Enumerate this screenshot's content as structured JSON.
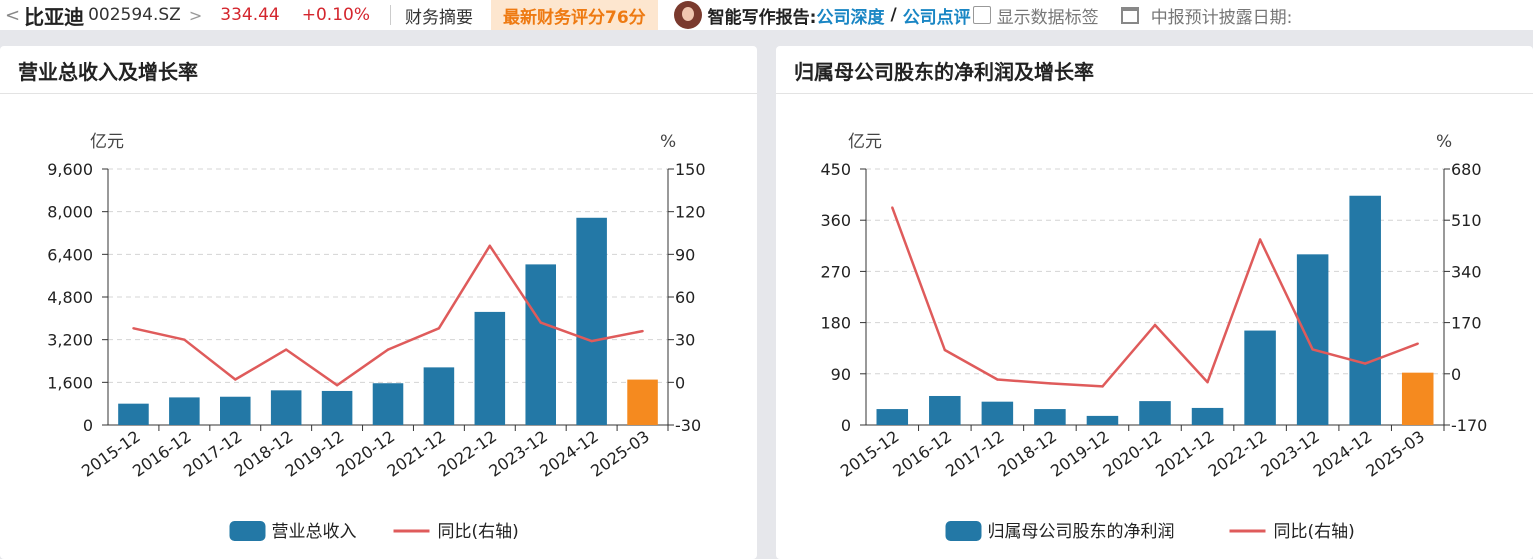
{
  "header": {
    "back": "<",
    "stock_name": "比亚迪",
    "stock_code": "002594.SZ",
    "chevron": ">",
    "price": "334.44",
    "change": "+0.10%",
    "tab_finance": "财务摘要",
    "score_badge": "最新财务评分76分",
    "ai_label": "智能写作报告:",
    "ai_link_depth": "公司深度",
    "ai_slash": "/",
    "ai_link_review": "公司点评",
    "show_labels": "显示数据标签",
    "disclosure": "中报预计披露日期:"
  },
  "colors": {
    "bar": "#2378a6",
    "bar_forecast": "#f58a1f",
    "line": "#df5b5b",
    "grid": "#d4d4d4"
  },
  "chart_data": [
    {
      "type": "bar",
      "title": "营业总收入及增长率",
      "left_unit": "亿元",
      "right_unit": "%",
      "categories": [
        "2015-12",
        "2016-12",
        "2017-12",
        "2018-12",
        "2019-12",
        "2020-12",
        "2021-12",
        "2022-12",
        "2023-12",
        "2024-12",
        "2025-03"
      ],
      "series": [
        {
          "name": "营业总收入",
          "axis": "left",
          "values": [
            800,
            1035,
            1060,
            1300,
            1277,
            1566,
            2161,
            4241,
            6023,
            7771,
            1703
          ]
        },
        {
          "name": "同比(右轴)",
          "type": "line",
          "axis": "right",
          "values": [
            38,
            30,
            2,
            23,
            -2,
            23,
            38,
            96,
            42,
            29,
            36
          ]
        }
      ],
      "ylim_left": [
        0,
        9600
      ],
      "yticks_left": [
        "0",
        "1,600",
        "3,200",
        "4,800",
        "6,400",
        "8,000",
        "9,600"
      ],
      "ylim_right": [
        -30,
        150
      ],
      "yticks_right": [
        "-30",
        "0",
        "30",
        "60",
        "90",
        "120",
        "150"
      ],
      "highlight_last": true,
      "grid": true,
      "legend": "bottom-center"
    },
    {
      "type": "bar",
      "title": "归属母公司股东的净利润及增长率",
      "left_unit": "亿元",
      "right_unit": "%",
      "categories": [
        "2015-12",
        "2016-12",
        "2017-12",
        "2018-12",
        "2019-12",
        "2020-12",
        "2021-12",
        "2022-12",
        "2023-12",
        "2024-12",
        "2025-03"
      ],
      "series": [
        {
          "name": "归属母公司股东的净利润",
          "axis": "left",
          "values": [
            28,
            51,
            41,
            28,
            16,
            42,
            30,
            166,
            300,
            403,
            92
          ]
        },
        {
          "name": "同比(右轴)",
          "type": "line",
          "axis": "right",
          "values": [
            552,
            79,
            -19,
            -32,
            -42,
            162,
            -28,
            446,
            81,
            34,
            100
          ]
        }
      ],
      "ylim_left": [
        0,
        450
      ],
      "yticks_left": [
        "0",
        "90",
        "180",
        "270",
        "360",
        "450"
      ],
      "ylim_right": [
        -170,
        680
      ],
      "yticks_right": [
        "-170",
        "0",
        "170",
        "340",
        "510",
        "680"
      ],
      "highlight_last": true,
      "grid": true,
      "legend": "bottom-center"
    }
  ]
}
